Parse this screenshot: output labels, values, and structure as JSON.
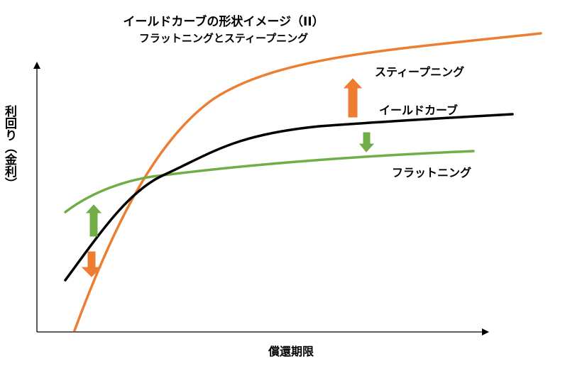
{
  "title": "イールドカーブの形状イメージ（II）",
  "subtitle": "フラットニングとスティープニング",
  "axes": {
    "ylabel": "利回り（金利）",
    "xlabel": "償還期限"
  },
  "colors": {
    "steepening": "#ed7d31",
    "yield_curve": "#000000",
    "flattening": "#70ad47",
    "axis": "#000000"
  },
  "icons": {
    "up_arrow_orange": "arrow-up-icon",
    "down_arrow_green": "arrow-down-icon",
    "up_arrow_green": "arrow-up-icon",
    "down_arrow_orange": "arrow-down-icon"
  },
  "chart_data": {
    "type": "line",
    "title": "イールドカーブの形状イメージ（II）",
    "subtitle": "フラットニングとスティープニング",
    "xlabel": "償還期限",
    "ylabel": "利回り（金利）",
    "grid": false,
    "series": [
      {
        "name": "スティープニング"
      },
      {
        "name": "イールドカーブ"
      },
      {
        "name": "フラットニング"
      }
    ]
  }
}
